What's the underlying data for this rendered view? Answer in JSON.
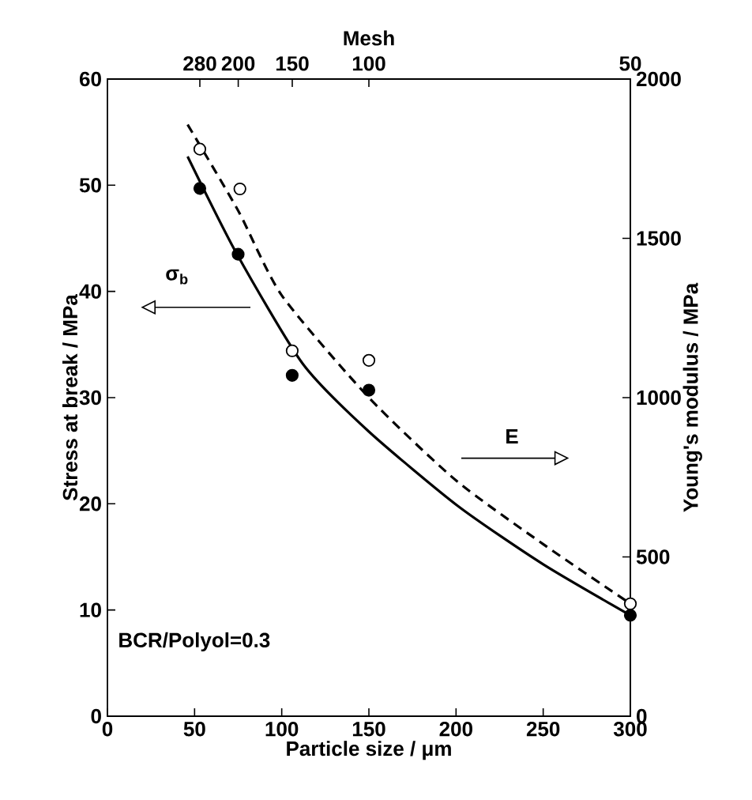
{
  "chart_data": {
    "type": "scatter",
    "xlabel": "Particle size / μm",
    "ylabel": "Stress at break / MPa",
    "y2label": "Young's modulus / MPa",
    "x2label": "Mesh",
    "xlim": [
      0,
      300
    ],
    "xticks": [
      0,
      50,
      100,
      150,
      200,
      250,
      300
    ],
    "ylim": [
      0,
      60
    ],
    "yticks": [
      0,
      10,
      20,
      30,
      40,
      50,
      60
    ],
    "y2lim": [
      0,
      2000
    ],
    "y2ticks": [
      0,
      500,
      1000,
      1500,
      2000
    ],
    "series": [
      {
        "color": "#000000",
        "marker": "circle",
        "x": [
          53,
          75,
          106,
          150,
          300
        ],
        "values": [
          49.7,
          43.5,
          32.1,
          30.7,
          9.5
        ]
      },
      {
        "axis": "y2",
        "color": "#000000",
        "marker": "circle",
        "x": [
          53,
          76,
          106,
          150,
          300
        ],
        "values": [
          1780,
          1655,
          1147,
          1117,
          353
        ]
      },
      {
        "type": "line",
        "color": "#000000",
        "marker": "none",
        "line_style": "solid",
        "x": [
          46,
          74,
          112,
          150,
          201,
          250,
          300
        ],
        "values": [
          52.7,
          43.6,
          33.2,
          26.8,
          19.8,
          14.3,
          9.5
        ]
      },
      {
        "type": "line",
        "axis": "y2",
        "color": "#000000",
        "marker": "none",
        "line_style": "dashed",
        "x": [
          46,
          75,
          100,
          150,
          200,
          250,
          300
        ],
        "values": [
          1857,
          1587,
          1321,
          1000,
          740,
          540,
          353
        ]
      }
    ],
    "annotations": [
      "σ$_{b}$",
      "E",
      "BCR/Polyol=0.3",
      {
        "text": "280",
        "x": 53
      },
      {
        "text": "200",
        "x": 75
      },
      {
        "text": "150",
        "x": 106
      },
      {
        "text": "100",
        "x": 150
      },
      "50"
    ]
  }
}
